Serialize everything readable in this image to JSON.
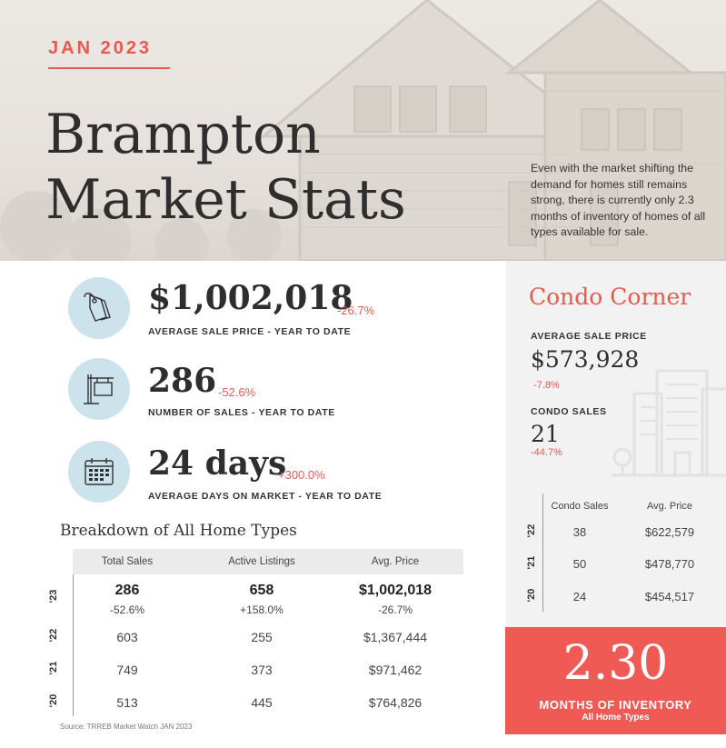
{
  "hero": {
    "date": "JAN 2023",
    "title_line1": "Brampton",
    "title_line2": "Market Stats",
    "intro": "Even with the market shifting the demand for homes still remains strong, there is currently only 2.3 months of inventory of homes of all types available for sale."
  },
  "stats": [
    {
      "icon": "price-tag-icon",
      "value": "$1,002,018",
      "change": "-26.7%",
      "label": "AVERAGE SALE PRICE - YEAR TO DATE"
    },
    {
      "icon": "for-sale-sign-icon",
      "value": "286",
      "change": "-52.6%",
      "label": "NUMBER OF SALES - YEAR TO DATE"
    },
    {
      "icon": "calendar-icon",
      "value": "24 days",
      "change": "+300.0%",
      "label": "AVERAGE DAYS ON MARKET - YEAR TO DATE"
    }
  ],
  "breakdown": {
    "title": "Breakdown of All Home Types",
    "headers": [
      "Total Sales",
      "Active Listings",
      "Avg. Price"
    ],
    "rows": [
      {
        "year": "'23",
        "values": [
          "286",
          "658",
          "$1,002,018"
        ],
        "changes": [
          "-52.6%",
          "+158.0%",
          "-26.7%"
        ]
      },
      {
        "year": "'22",
        "values": [
          "603",
          "255",
          "$1,367,444"
        ]
      },
      {
        "year": "'21",
        "values": [
          "749",
          "373",
          "$971,462"
        ]
      },
      {
        "year": "'20",
        "values": [
          "513",
          "445",
          "$764,826"
        ]
      }
    ],
    "source": "Source: TRREB Market Watch JAN 2023"
  },
  "condo": {
    "title": "Condo Corner",
    "avg_price_label": "AVERAGE SALE PRICE",
    "avg_price_value": "$573,928",
    "avg_price_change": "-7.8%",
    "sales_label": "CONDO SALES",
    "sales_value": "21",
    "sales_change": "-44.7%",
    "headers": [
      "Condo Sales",
      "Avg. Price"
    ],
    "rows": [
      {
        "year": "'22",
        "values": [
          "38",
          "$622,579"
        ]
      },
      {
        "year": "'21",
        "values": [
          "50",
          "$478,770"
        ]
      },
      {
        "year": "'20",
        "values": [
          "24",
          "$454,517"
        ]
      }
    ]
  },
  "inventory": {
    "value": "2.30",
    "label": "MONTHS OF INVENTORY",
    "sub": "All Home Types"
  },
  "colors": {
    "accent": "#e85a50",
    "circle": "#cde3ec",
    "inventory_bg": "#ef5a55"
  }
}
